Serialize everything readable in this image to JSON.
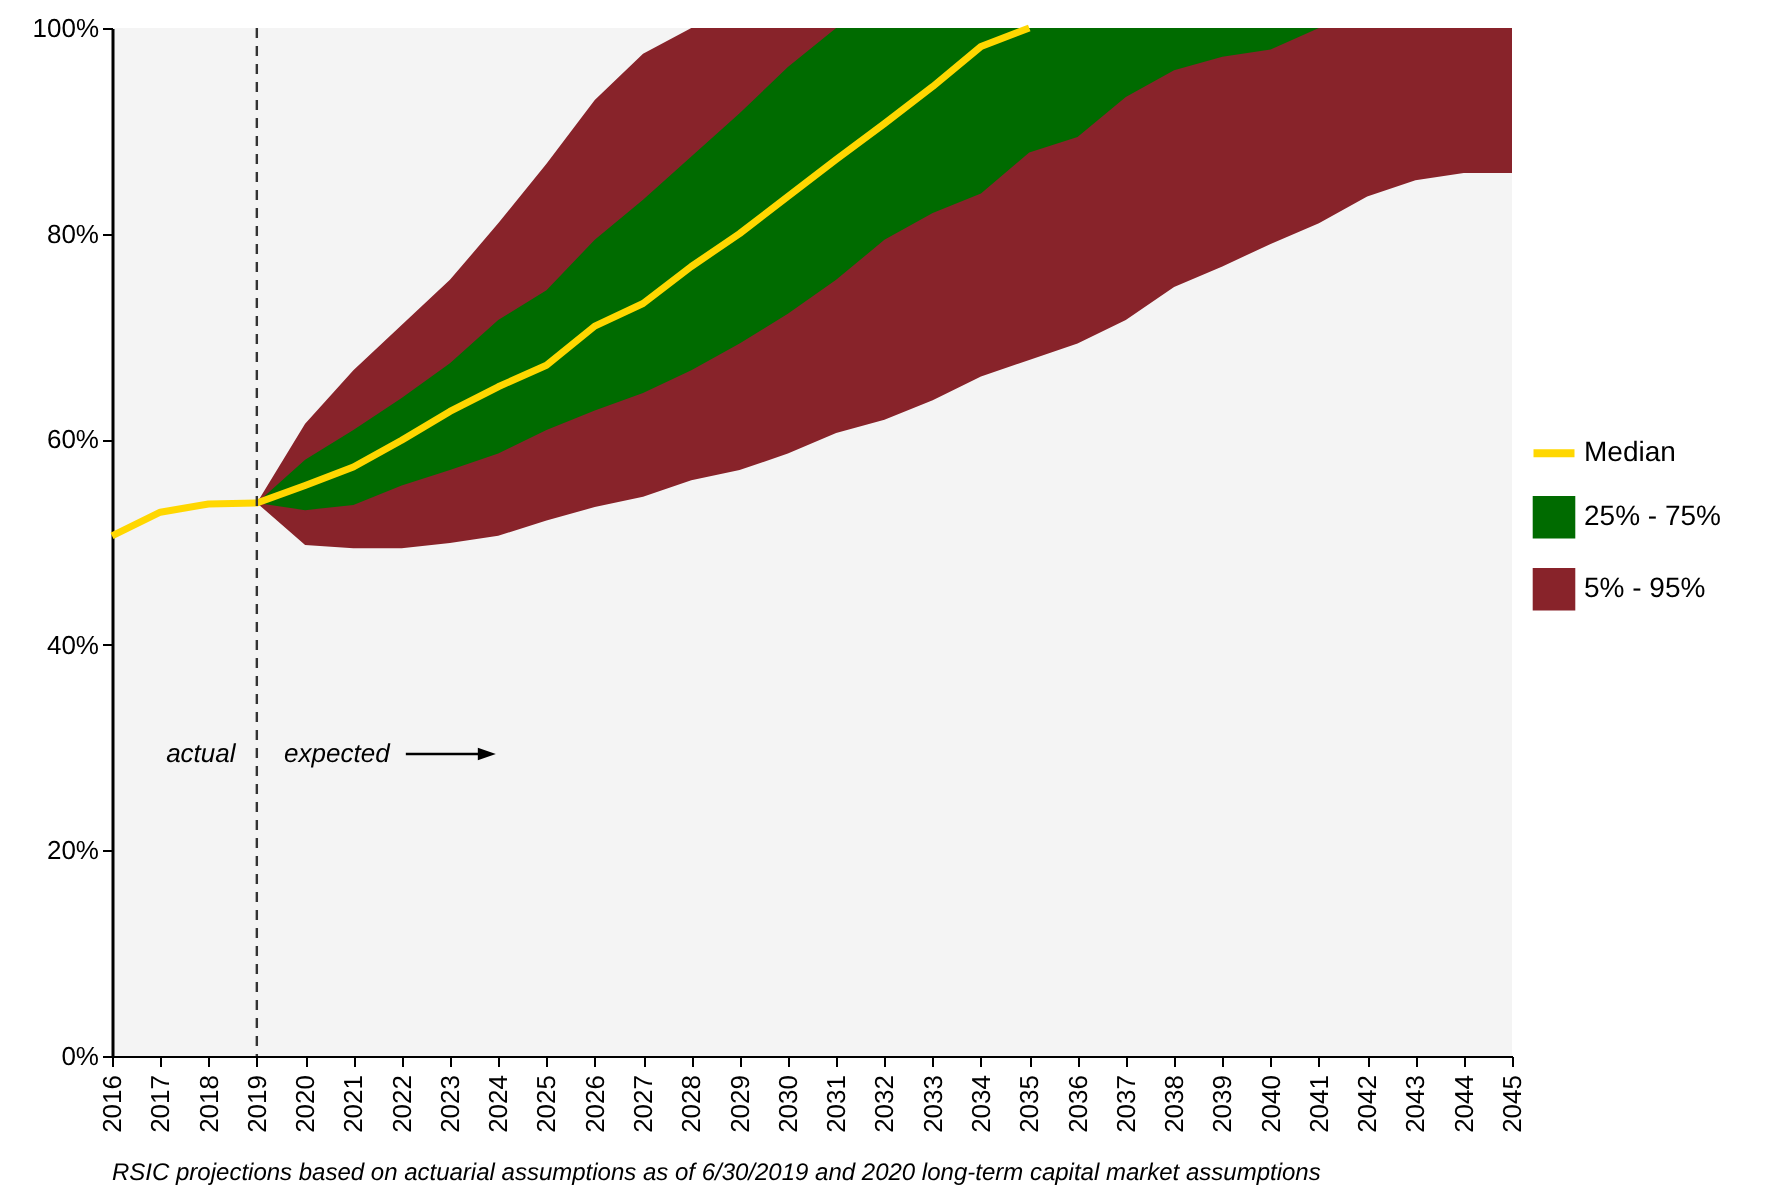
{
  "chart_data": {
    "type": "line",
    "x": [
      2016,
      2017,
      2018,
      2019,
      2020,
      2021,
      2022,
      2023,
      2024,
      2025,
      2026,
      2027,
      2028,
      2029,
      2030,
      2031,
      2032,
      2033,
      2034,
      2035,
      2036,
      2037,
      2038,
      2039,
      2040,
      2041,
      2042,
      2043,
      2044,
      2045
    ],
    "series": [
      {
        "name": "Median",
        "type": "line",
        "color": "#ffd700",
        "values": [
          50.6,
          52.9,
          53.7,
          53.8,
          55.5,
          57.3,
          59.9,
          62.7,
          65.1,
          67.2,
          71.0,
          73.2,
          76.8,
          80.0,
          83.6,
          87.2,
          90.7,
          94.3,
          98.2,
          100,
          null,
          null,
          null,
          null,
          null,
          null,
          null,
          null,
          null,
          null
        ]
      },
      {
        "name": "25% - 75%",
        "type": "area",
        "color": "#006b00",
        "values": [
          null,
          null,
          null,
          null,
          null,
          null,
          null,
          null,
          null,
          null,
          null,
          null,
          null,
          null,
          null,
          null,
          null,
          null,
          null,
          null,
          null,
          null,
          null,
          null,
          null,
          null,
          null,
          null,
          null,
          null
        ],
        "lower": [
          null,
          null,
          null,
          53.8,
          53.1,
          53.6,
          55.5,
          57.0,
          58.6,
          60.9,
          62.8,
          64.5,
          66.7,
          69.3,
          72.2,
          75.5,
          79.4,
          82.0,
          83.9,
          87.9,
          89.4,
          93.3,
          95.9,
          97.2,
          97.9,
          100,
          100,
          100,
          100,
          100
        ],
        "upper": [
          null,
          null,
          null,
          53.8,
          58.0,
          60.9,
          64.0,
          67.4,
          71.6,
          74.5,
          79.4,
          83.3,
          87.5,
          91.7,
          96.2,
          100,
          100,
          100,
          100,
          100,
          100,
          100,
          100,
          100,
          100,
          100,
          100,
          100,
          100,
          100
        ]
      },
      {
        "name": "5% - 95%",
        "type": "area",
        "color": "#88232a",
        "values": [
          null,
          null,
          null,
          null,
          null,
          null,
          null,
          null,
          null,
          null,
          null,
          null,
          null,
          null,
          null,
          null,
          null,
          null,
          null,
          null,
          null,
          null,
          null,
          null,
          null,
          null,
          null,
          null,
          null,
          null
        ],
        "lower": [
          null,
          null,
          null,
          53.8,
          49.7,
          49.4,
          49.4,
          49.9,
          50.6,
          52.1,
          53.4,
          54.4,
          56.0,
          57.0,
          58.6,
          60.6,
          61.9,
          63.8,
          66.1,
          67.7,
          69.3,
          71.6,
          74.8,
          76.8,
          79.0,
          81.0,
          83.6,
          85.2,
          85.9,
          85.9
        ],
        "upper": [
          null,
          null,
          null,
          53.8,
          61.5,
          66.7,
          71.1,
          75.5,
          81.0,
          86.8,
          93.0,
          97.5,
          100,
          100,
          100,
          100,
          100,
          100,
          100,
          100,
          100,
          100,
          100,
          100,
          100,
          100,
          100,
          100,
          100,
          100
        ]
      }
    ],
    "xlim": [
      2016,
      2045
    ],
    "xticks": [
      2016,
      2017,
      2018,
      2019,
      2020,
      2021,
      2022,
      2023,
      2024,
      2025,
      2026,
      2027,
      2028,
      2029,
      2030,
      2031,
      2032,
      2033,
      2034,
      2035,
      2036,
      2037,
      2038,
      2039,
      2040,
      2041,
      2042,
      2043,
      2044,
      2045
    ],
    "ylim": [
      0,
      100
    ],
    "yticks": [
      {
        "value": 0,
        "label": "0%"
      },
      {
        "value": 20,
        "label": "20%"
      },
      {
        "value": 40,
        "label": "40%"
      },
      {
        "value": 60,
        "label": "60%"
      },
      {
        "value": 80,
        "label": "80%"
      },
      {
        "value": 100,
        "label": "100%"
      }
    ],
    "ref_lines": [
      {
        "axis": "x",
        "value": 2019,
        "color": "#333333",
        "line_style": "dashed"
      }
    ],
    "annotations": [
      "actual",
      "expected",
      "RSIC projections based on actuarial assumptions as of 6/30/2019 and 2020 long-term capital market assumptions"
    ],
    "legend": "right",
    "marker": "none"
  }
}
